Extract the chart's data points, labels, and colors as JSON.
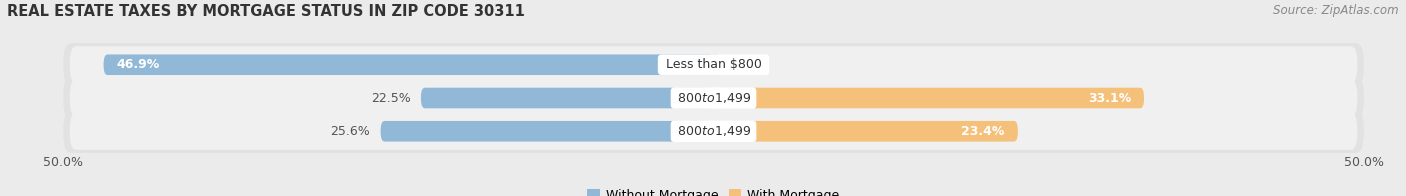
{
  "title": "REAL ESTATE TAXES BY MORTGAGE STATUS IN ZIP CODE 30311",
  "source": "Source: ZipAtlas.com",
  "rows": [
    {
      "label": "Less than $800",
      "without_mortgage": 46.9,
      "with_mortgage": 0.18
    },
    {
      "label": "$800 to $1,499",
      "without_mortgage": 22.5,
      "with_mortgage": 33.1
    },
    {
      "label": "$800 to $1,499",
      "without_mortgage": 25.6,
      "with_mortgage": 23.4
    }
  ],
  "xlim": [
    -50,
    50
  ],
  "color_without": "#92b8d8",
  "color_with": "#f5c07a",
  "color_without_inner": "#a8cceb",
  "color_with_inner": "#f7c97a",
  "bar_height": 0.62,
  "bg_color": "#ebebeb",
  "row_bg": "#e2e2e2",
  "row_bg_inner": "#f0f0f0",
  "label_fontsize": 9,
  "pct_fontsize": 9,
  "title_fontsize": 10.5,
  "source_fontsize": 8.5,
  "xtick_fontsize": 9
}
